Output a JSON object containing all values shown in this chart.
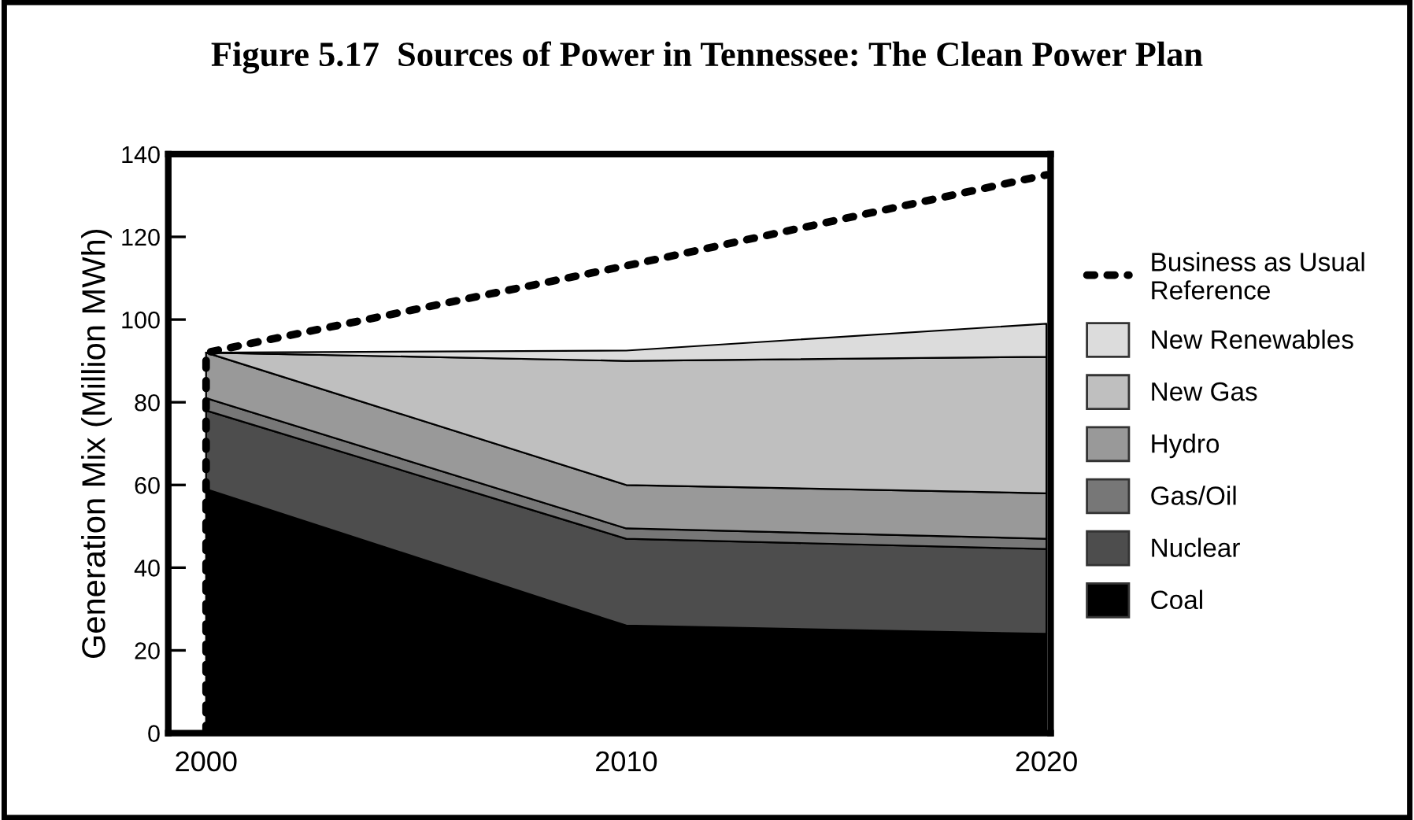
{
  "chart_data": {
    "type": "area",
    "stacked": true,
    "title": "Figure 5.17  Sources of Power in Tennessee: The Clean Power Plan",
    "ylabel": "Generation Mix (Million MWh)",
    "x": [
      2000,
      2010,
      2020
    ],
    "series": [
      {
        "name": "Coal",
        "color": "#000000",
        "values": [
          59,
          26,
          24
        ]
      },
      {
        "name": "Nuclear",
        "color": "#4d4d4d",
        "values": [
          19,
          21,
          20.5
        ]
      },
      {
        "name": "Gas/Oil",
        "color": "#777777",
        "values": [
          3,
          2.5,
          2.5
        ]
      },
      {
        "name": "Hydro",
        "color": "#999999",
        "values": [
          11,
          10.5,
          11
        ]
      },
      {
        "name": "New Gas",
        "color": "#bfbfbf",
        "values": [
          0,
          30,
          33
        ]
      },
      {
        "name": "New Renewables",
        "color": "#dcdcdc",
        "values": [
          0,
          2.5,
          8
        ]
      },
      {
        "name": "Business as Usual\nReference",
        "type": "line",
        "color": "#000000",
        "line_style": "dotted",
        "x": [
          2000,
          2000,
          2010,
          2020
        ],
        "values": [
          0,
          92,
          113,
          135
        ]
      }
    ],
    "xlim": [
      1999.1,
      2020.1
    ],
    "ylim": [
      0,
      140
    ],
    "xticks": [
      2000,
      2010,
      2020
    ],
    "yticks": [
      0,
      20,
      40,
      60,
      80,
      100,
      120,
      140
    ],
    "grid": false,
    "legend": "right"
  }
}
